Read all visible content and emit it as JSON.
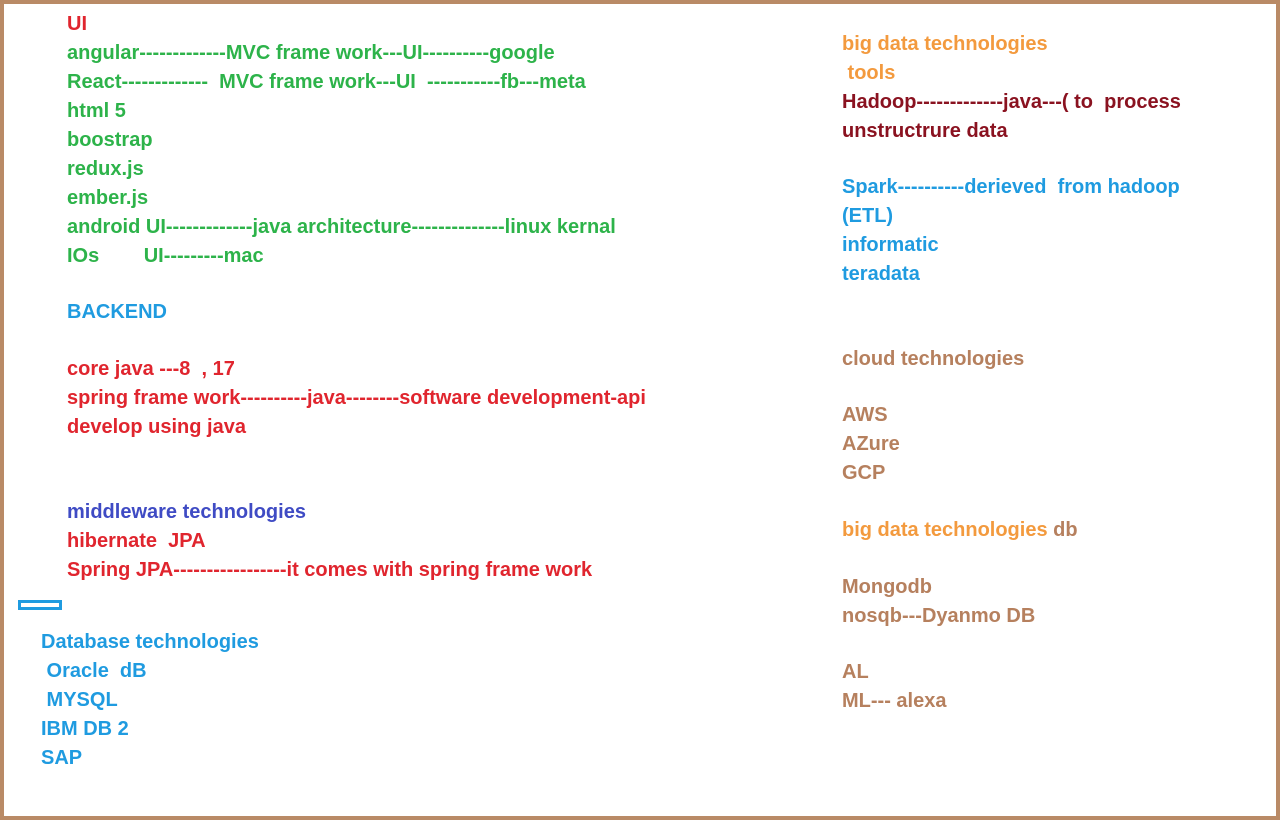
{
  "colors": {
    "border": "#b98a66",
    "red": "#e0252e",
    "green": "#2db34a",
    "blue": "#1f9be0",
    "indigo": "#3f4bc4",
    "orange": "#f39a3e",
    "maroon": "#8a1220",
    "brown": "#b6805e"
  },
  "ui": {
    "heading": "UI",
    "items": [
      "angular-------------MVC frame work---UI----------google",
      "React-------------  MVC frame work---UI  -----------fb---meta",
      "html 5",
      "boostrap",
      "redux.js",
      "ember.js",
      "android UI-------------java architecture--------------linux kernal",
      "IOs        UI---------mac"
    ]
  },
  "backend": {
    "heading": "BACKEND",
    "items": [
      "core java ---8  , 17",
      "spring frame work----------java--------software development-api",
      "develop using java"
    ]
  },
  "middleware": {
    "heading": "middleware technologies",
    "items": [
      "hibernate  JPA",
      "Spring JPA-----------------it comes with spring frame work"
    ]
  },
  "database": {
    "heading": "Database technologies",
    "items": [
      " Oracle  dB",
      " MYSQL",
      "IBM DB 2",
      "SAP"
    ]
  },
  "bigdata_tools": {
    "heading": "big data technologies",
    "subheading": " tools",
    "maroon_items": [
      "Hadoop-------------java---( to  process",
      "unstructrure data"
    ],
    "blue_items": [
      "Spark----------derieved  from hadoop",
      "(ETL)",
      "informatic",
      "teradata"
    ]
  },
  "cloud": {
    "heading": "cloud technologies",
    "items": [
      "AWS",
      "AZure",
      "GCP"
    ]
  },
  "bigdata_db": {
    "heading_main": "big data technologies",
    "heading_suffix": " db",
    "items": [
      "Mongodb",
      "nosqb---Dyanmo DB"
    ]
  },
  "ai": {
    "items": [
      "AL",
      "ML--- alexa"
    ]
  }
}
